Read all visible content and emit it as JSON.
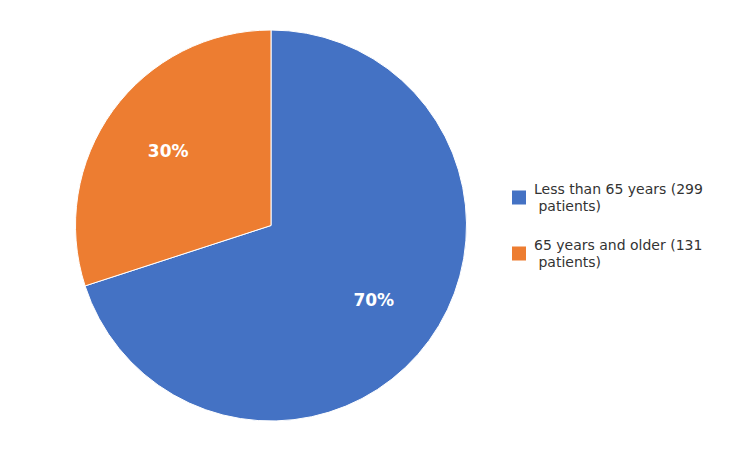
{
  "chart_data": {
    "type": "pie",
    "categories": [
      "Less than 65 years (299\n patients)",
      "65 years and older (131\n patients)"
    ],
    "values": [
      70,
      30
    ],
    "value_labels": [
      "70%",
      "30%"
    ],
    "colors": [
      "#4472C4",
      "#ED7D31"
    ],
    "data_labels": true,
    "legend": "right"
  }
}
